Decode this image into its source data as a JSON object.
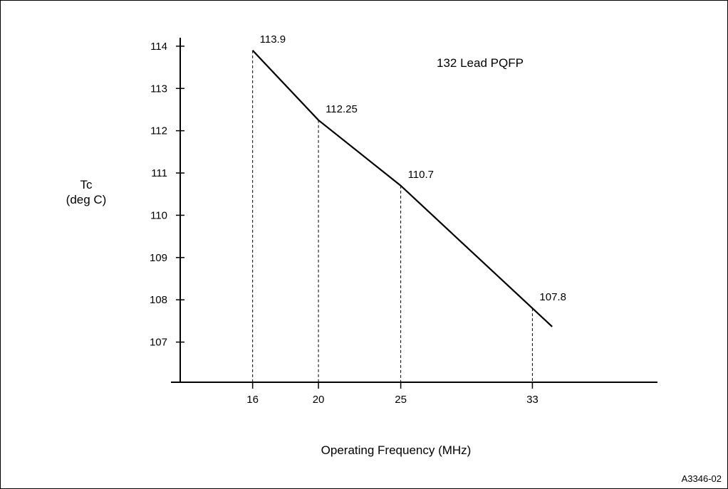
{
  "chart_data": {
    "type": "line",
    "title": "",
    "annotation": "132 Lead PQFP",
    "xlabel": "Operating Frequency (MHz)",
    "ylabel": [
      "Tc",
      "(deg C)"
    ],
    "x_ticks": [
      16,
      20,
      25,
      33
    ],
    "y_ticks": [
      107,
      108,
      109,
      110,
      111,
      112,
      113,
      114
    ],
    "xlim": [
      11.6,
      40.6
    ],
    "ylim": [
      106.05,
      114.2
    ],
    "line_extent_x": [
      16,
      34.2
    ],
    "series": [
      {
        "name": "",
        "points": [
          {
            "x": 16,
            "y": 113.9,
            "label": "113.9"
          },
          {
            "x": 20,
            "y": 112.25,
            "label": "112.25"
          },
          {
            "x": 25,
            "y": 110.7,
            "label": "110.7"
          },
          {
            "x": 33,
            "y": 107.8,
            "label": "107.8"
          }
        ]
      }
    ],
    "grid": false,
    "drop_lines": true,
    "figure_id": "A3346-02"
  }
}
